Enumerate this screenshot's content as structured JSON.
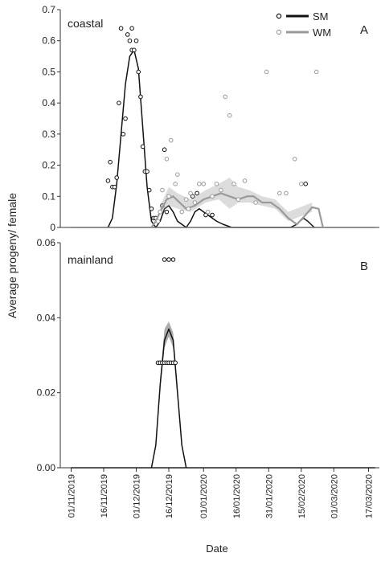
{
  "figure": {
    "ylabel": "Average progeny/ female",
    "xlabel": "Date"
  },
  "chart_data": [
    {
      "type": "line",
      "panel_letter": "A",
      "panel_label": "coastal",
      "ylim": [
        0,
        0.7
      ],
      "yticks": [
        "0",
        "0.1",
        "0.2",
        "0.3",
        "0.4",
        "0.5",
        "0.6",
        "0.7"
      ],
      "x_range": [
        "2019-10-27",
        "2020-03-22"
      ],
      "legend": {
        "placement": "top-right",
        "entries": [
          "SM",
          "WM"
        ]
      },
      "series": [
        {
          "name": "SM",
          "color": "#111111",
          "marker": "open-circle",
          "line": [
            [
              "2019-11-18",
              0.0
            ],
            [
              "2019-11-20",
              0.03
            ],
            [
              "2019-11-22",
              0.14
            ],
            [
              "2019-11-24",
              0.3
            ],
            [
              "2019-11-26",
              0.46
            ],
            [
              "2019-11-28",
              0.55
            ],
            [
              "2019-11-30",
              0.57
            ],
            [
              "2019-12-02",
              0.51
            ],
            [
              "2019-12-04",
              0.32
            ],
            [
              "2019-12-06",
              0.13
            ],
            [
              "2019-12-08",
              0.02
            ],
            [
              "2019-12-10",
              0.0
            ],
            [
              "2019-12-12",
              0.02
            ],
            [
              "2019-12-14",
              0.06
            ],
            [
              "2019-12-16",
              0.07
            ],
            [
              "2019-12-18",
              0.05
            ],
            [
              "2019-12-20",
              0.02
            ],
            [
              "2019-12-22",
              0.01
            ],
            [
              "2019-12-24",
              0.0
            ],
            [
              "2019-12-26",
              0.02
            ],
            [
              "2019-12-28",
              0.05
            ],
            [
              "2019-12-30",
              0.06
            ],
            [
              "2020-01-01",
              0.05
            ],
            [
              "2020-01-03",
              0.04
            ],
            [
              "2020-01-05",
              0.03
            ],
            [
              "2020-01-07",
              0.02
            ],
            [
              "2020-01-10",
              0.01
            ],
            [
              "2020-01-14",
              0.0
            ],
            [
              "2020-02-10",
              0.0
            ],
            [
              "2020-02-13",
              0.01
            ],
            [
              "2020-02-16",
              0.03
            ],
            [
              "2020-02-18",
              0.02
            ],
            [
              "2020-02-21",
              0.0
            ]
          ],
          "points": [
            [
              "2019-11-18",
              0.15
            ],
            [
              "2019-11-19",
              0.21
            ],
            [
              "2019-11-20",
              0.13
            ],
            [
              "2019-11-21",
              0.13
            ],
            [
              "2019-11-22",
              0.16
            ],
            [
              "2019-11-23",
              0.4
            ],
            [
              "2019-11-24",
              0.64
            ],
            [
              "2019-11-25",
              0.3
            ],
            [
              "2019-11-26",
              0.35
            ],
            [
              "2019-11-27",
              0.62
            ],
            [
              "2019-11-28",
              0.6
            ],
            [
              "2019-11-29",
              0.57
            ],
            [
              "2019-11-29",
              0.64
            ],
            [
              "2019-11-30",
              0.57
            ],
            [
              "2019-12-01",
              0.6
            ],
            [
              "2019-12-02",
              0.5
            ],
            [
              "2019-12-03",
              0.42
            ],
            [
              "2019-12-04",
              0.26
            ],
            [
              "2019-12-05",
              0.18
            ],
            [
              "2019-12-06",
              0.18
            ],
            [
              "2019-12-07",
              0.12
            ],
            [
              "2019-12-08",
              0.06
            ],
            [
              "2019-12-09",
              0.03
            ],
            [
              "2019-12-10",
              0.03
            ],
            [
              "2019-12-13",
              0.07
            ],
            [
              "2019-12-14",
              0.25
            ],
            [
              "2019-12-15",
              0.05
            ],
            [
              "2019-12-27",
              0.1
            ],
            [
              "2019-12-29",
              0.11
            ],
            [
              "2020-01-02",
              0.04
            ],
            [
              "2020-01-05",
              0.04
            ],
            [
              "2020-02-17",
              0.14
            ]
          ]
        },
        {
          "name": "WM",
          "color": "#9a9a9a",
          "marker": "open-circle",
          "line": [
            [
              "2019-12-08",
              0.0
            ],
            [
              "2019-12-10",
              0.02
            ],
            [
              "2019-12-12",
              0.05
            ],
            [
              "2019-12-15",
              0.09
            ],
            [
              "2019-12-18",
              0.1
            ],
            [
              "2019-12-21",
              0.08
            ],
            [
              "2019-12-24",
              0.06
            ],
            [
              "2019-12-28",
              0.07
            ],
            [
              "2020-01-01",
              0.09
            ],
            [
              "2020-01-05",
              0.1
            ],
            [
              "2020-01-09",
              0.11
            ],
            [
              "2020-01-13",
              0.1
            ],
            [
              "2020-01-17",
              0.09
            ],
            [
              "2020-01-21",
              0.1
            ],
            [
              "2020-01-24",
              0.1
            ],
            [
              "2020-01-28",
              0.08
            ],
            [
              "2020-02-01",
              0.08
            ],
            [
              "2020-02-05",
              0.06
            ],
            [
              "2020-02-09",
              0.03
            ],
            [
              "2020-02-13",
              0.01
            ],
            [
              "2020-02-17",
              0.04
            ],
            [
              "2020-02-20",
              0.065
            ],
            [
              "2020-02-23",
              0.06
            ],
            [
              "2020-02-25",
              0.0
            ]
          ],
          "band": [
            [
              "2019-12-12",
              0.04,
              0.07
            ],
            [
              "2019-12-16",
              0.07,
              0.13
            ],
            [
              "2019-12-20",
              0.06,
              0.11
            ],
            [
              "2019-12-26",
              0.05,
              0.09
            ],
            [
              "2020-01-02",
              0.08,
              0.12
            ],
            [
              "2020-01-08",
              0.09,
              0.14
            ],
            [
              "2020-01-13",
              0.06,
              0.16
            ],
            [
              "2020-01-17",
              0.08,
              0.13
            ],
            [
              "2020-01-22",
              0.08,
              0.12
            ],
            [
              "2020-01-28",
              0.07,
              0.1
            ],
            [
              "2020-02-03",
              0.06,
              0.09
            ],
            [
              "2020-02-09",
              0.02,
              0.05
            ],
            [
              "2020-02-20",
              0.05,
              0.08
            ]
          ],
          "points": [
            [
              "2019-12-11",
              0.02
            ],
            [
              "2019-12-12",
              0.05
            ],
            [
              "2019-12-13",
              0.12
            ],
            [
              "2019-12-15",
              0.22
            ],
            [
              "2019-12-16",
              0.1
            ],
            [
              "2019-12-17",
              0.28
            ],
            [
              "2019-12-19",
              0.14
            ],
            [
              "2019-12-20",
              0.17
            ],
            [
              "2019-12-22",
              0.05
            ],
            [
              "2019-12-24",
              0.09
            ],
            [
              "2019-12-25",
              0.06
            ],
            [
              "2019-12-26",
              0.11
            ],
            [
              "2019-12-28",
              0.08
            ],
            [
              "2019-12-30",
              0.14
            ],
            [
              "2020-01-01",
              0.14
            ],
            [
              "2020-01-03",
              0.05
            ],
            [
              "2020-01-05",
              0.1
            ],
            [
              "2020-01-07",
              0.14
            ],
            [
              "2020-01-09",
              0.12
            ],
            [
              "2020-01-11",
              0.42
            ],
            [
              "2020-01-13",
              0.36
            ],
            [
              "2020-01-15",
              0.14
            ],
            [
              "2020-01-17",
              0.09
            ],
            [
              "2020-01-20",
              0.15
            ],
            [
              "2020-01-25",
              0.08
            ],
            [
              "2020-01-30",
              0.5
            ],
            [
              "2020-02-05",
              0.11
            ],
            [
              "2020-02-08",
              0.11
            ],
            [
              "2020-02-12",
              0.22
            ],
            [
              "2020-02-15",
              0.14
            ],
            [
              "2020-02-22",
              0.5
            ]
          ]
        }
      ]
    },
    {
      "type": "line",
      "panel_letter": "B",
      "panel_label": "mainland",
      "ylim": [
        0,
        0.06
      ],
      "yticks": [
        "0.00",
        "0.02",
        "0.04",
        "0.06"
      ],
      "x_range": [
        "2019-10-27",
        "2020-03-22"
      ],
      "xticks": [
        "01/11/2019",
        "16/11/2019",
        "01/12/2019",
        "16/12/2019",
        "01/01/2020",
        "16/01/2020",
        "31/01/2020",
        "15/02/2020",
        "01/03/2020",
        "17/03/2020"
      ],
      "series": [
        {
          "name": "",
          "color": "#111111",
          "marker": "open-circle",
          "line": [
            [
              "2019-12-08",
              0.0
            ],
            [
              "2019-12-10",
              0.006
            ],
            [
              "2019-12-12",
              0.022
            ],
            [
              "2019-12-14",
              0.034
            ],
            [
              "2019-12-16",
              0.037
            ],
            [
              "2019-12-18",
              0.034
            ],
            [
              "2019-12-20",
              0.02
            ],
            [
              "2019-12-22",
              0.006
            ],
            [
              "2019-12-24",
              0.0
            ]
          ],
          "band": [
            [
              "2019-12-12",
              0.021,
              0.024
            ],
            [
              "2019-12-14",
              0.032,
              0.037
            ],
            [
              "2019-12-16",
              0.035,
              0.039
            ],
            [
              "2019-12-18",
              0.032,
              0.036
            ],
            [
              "2019-12-20",
              0.019,
              0.022
            ]
          ],
          "points": [
            [
              "2019-12-11",
              0.028
            ],
            [
              "2019-12-12",
              0.028
            ],
            [
              "2019-12-13",
              0.028
            ],
            [
              "2019-12-14",
              0.028
            ],
            [
              "2019-12-15",
              0.028
            ],
            [
              "2019-12-16",
              0.028
            ],
            [
              "2019-12-17",
              0.028
            ],
            [
              "2019-12-18",
              0.028
            ],
            [
              "2019-12-19",
              0.028
            ],
            [
              "2019-12-14",
              0.0555
            ],
            [
              "2019-12-16",
              0.0555
            ],
            [
              "2019-12-18",
              0.0555
            ]
          ]
        }
      ]
    }
  ]
}
